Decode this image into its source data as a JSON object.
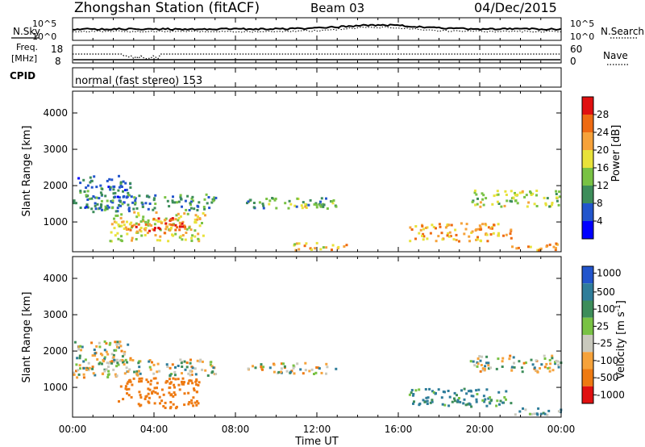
{
  "header": {
    "title": "Zhongshan Station (fitACF)",
    "beam": "Beam 03",
    "date": "04/Dec/2015"
  },
  "noise_panel": {
    "left_label": "N.Sky",
    "right_label": "N.Search",
    "left_ticks": [
      "10^5",
      "10^0"
    ],
    "right_ticks": [
      "10^5",
      "10^0"
    ]
  },
  "freq_panel": {
    "left_label_line1": "Freq.",
    "left_label_line2": "[MHz]",
    "left_ticks": [
      "18",
      "8"
    ],
    "right_label": "Nave",
    "right_ticks": [
      "60",
      "0"
    ]
  },
  "cpid_panel": {
    "label": "CPID",
    "text": "normal (fast stereo) 153"
  },
  "chart_data": [
    {
      "type": "heatmap",
      "title": "",
      "xlabel": "",
      "ylabel": "Slant Range [km]",
      "x_ticks": [
        "00:00",
        "04:00",
        "08:00",
        "12:00",
        "16:00",
        "20:00",
        "00:00"
      ],
      "xlim_hours": [
        0,
        24
      ],
      "ylim": [
        180,
        4600
      ],
      "y_ticks": [
        1000,
        2000,
        3000,
        4000
      ],
      "colorbar": {
        "label": "Power [dB]",
        "ticks": [
          "4",
          "8",
          "12",
          "16",
          "20",
          "24",
          "28"
        ],
        "colors": [
          "#0000ff",
          "#2255cc",
          "#3d8d5a",
          "#79c244",
          "#e8e23a",
          "#f6a23a",
          "#ee6a12",
          "#e01010"
        ]
      },
      "regions": [
        {
          "t0": 0.0,
          "t1": 2.8,
          "r0": 1300,
          "r1": 2300,
          "level": 8
        },
        {
          "t0": 1.2,
          "t1": 7.0,
          "r0": 1350,
          "r1": 1800,
          "level": 10
        },
        {
          "t0": 1.8,
          "t1": 6.5,
          "r0": 500,
          "r1": 1300,
          "level": 18
        },
        {
          "t0": 3.8,
          "t1": 5.6,
          "r0": 700,
          "r1": 1150,
          "level": 28
        },
        {
          "t0": 2.5,
          "t1": 3.8,
          "r0": 700,
          "r1": 1000,
          "level": 24
        },
        {
          "t0": 8.5,
          "t1": 13.0,
          "r0": 1400,
          "r1": 1700,
          "level": 12
        },
        {
          "t0": 11.0,
          "t1": 13.0,
          "r0": 1450,
          "r1": 1600,
          "level": 16
        },
        {
          "t0": 10.5,
          "t1": 13.5,
          "r0": 250,
          "r1": 450,
          "level": 20
        },
        {
          "t0": 16.5,
          "t1": 21.5,
          "r0": 500,
          "r1": 1000,
          "level": 22
        },
        {
          "t0": 19.5,
          "t1": 24.0,
          "r0": 1450,
          "r1": 1900,
          "level": 16
        },
        {
          "t0": 21.5,
          "t1": 24.0,
          "r0": 250,
          "r1": 450,
          "level": 22
        }
      ]
    },
    {
      "type": "heatmap",
      "title": "",
      "xlabel": "Time UT",
      "ylabel": "Slant Range [km]",
      "x_ticks": [
        "00:00",
        "04:00",
        "08:00",
        "12:00",
        "16:00",
        "20:00",
        "00:00"
      ],
      "xlim_hours": [
        0,
        24
      ],
      "ylim": [
        180,
        4600
      ],
      "y_ticks": [
        1000,
        2000,
        3000,
        4000
      ],
      "colorbar": {
        "label": "Velocity [m s",
        "label_sup": "-1",
        "label_end": "]",
        "ticks": [
          "1000",
          "500",
          "100",
          "25",
          "-25",
          "-100",
          "-500",
          "-1000"
        ],
        "colors": [
          "#2255cc",
          "#2f7d9a",
          "#3d8d5a",
          "#79c244",
          "#c9c9bd",
          "#f6a23a",
          "#ee7a12",
          "#e01010"
        ]
      },
      "regions": [
        {
          "t0": 0.0,
          "t1": 2.8,
          "r0": 1300,
          "r1": 2300,
          "vel": 0
        },
        {
          "t0": 1.2,
          "t1": 7.0,
          "r0": 1350,
          "r1": 1800,
          "vel": 0
        },
        {
          "t0": 2.2,
          "t1": 6.2,
          "r0": 450,
          "r1": 1300,
          "vel": -300
        },
        {
          "t0": 8.5,
          "t1": 13.0,
          "r0": 1400,
          "r1": 1700,
          "vel": 0
        },
        {
          "t0": 16.5,
          "t1": 21.5,
          "r0": 500,
          "r1": 1000,
          "vel": 150
        },
        {
          "t0": 19.5,
          "t1": 24.0,
          "r0": 1450,
          "r1": 1900,
          "vel": 0
        },
        {
          "t0": 21.5,
          "t1": 24.0,
          "r0": 250,
          "r1": 450,
          "vel": 100
        }
      ]
    }
  ]
}
